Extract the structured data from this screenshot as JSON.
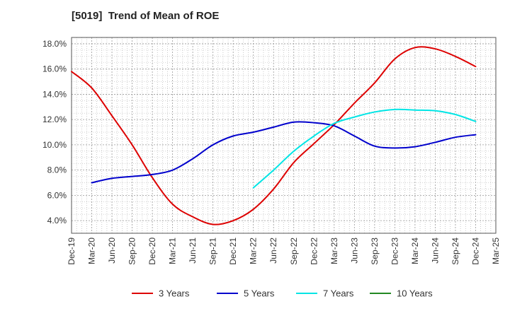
{
  "chart_data": {
    "type": "line",
    "title": "[5019]  Trend of Mean of ROE",
    "x": [
      "Dec-19",
      "Mar-20",
      "Jun-20",
      "Sep-20",
      "Dec-20",
      "Mar-21",
      "Jun-21",
      "Sep-21",
      "Dec-21",
      "Mar-22",
      "Jun-22",
      "Sep-22",
      "Dec-22",
      "Mar-23",
      "Jun-23",
      "Sep-23",
      "Dec-23",
      "Mar-24",
      "Jun-24",
      "Sep-24",
      "Dec-24",
      "Mar-25"
    ],
    "y_ticks": [
      "4.0%",
      "6.0%",
      "8.0%",
      "10.0%",
      "12.0%",
      "14.0%",
      "16.0%",
      "18.0%"
    ],
    "ylim": [
      3.0,
      18.5
    ],
    "grid": true,
    "legend_position": "bottom",
    "series": [
      {
        "name": "3 Years",
        "color": "#dd0000",
        "values": [
          15.8,
          14.5,
          12.3,
          10.0,
          7.4,
          5.3,
          4.3,
          3.7,
          4.0,
          4.9,
          6.5,
          8.6,
          10.1,
          11.6,
          13.3,
          14.9,
          16.8,
          17.7,
          17.6,
          17.0,
          16.2,
          null
        ]
      },
      {
        "name": "5 Years",
        "color": "#0000cc",
        "values": [
          null,
          7.0,
          7.35,
          7.5,
          7.65,
          8.0,
          8.9,
          10.0,
          10.7,
          11.0,
          11.4,
          11.8,
          11.75,
          11.5,
          10.7,
          9.9,
          9.75,
          9.85,
          10.2,
          10.6,
          10.8,
          null
        ]
      },
      {
        "name": "7 Years",
        "color": "#00e5e5",
        "values": [
          null,
          null,
          null,
          null,
          null,
          null,
          null,
          null,
          null,
          6.6,
          8.0,
          9.5,
          10.7,
          11.7,
          12.2,
          12.6,
          12.8,
          12.75,
          12.7,
          12.4,
          11.85,
          null
        ]
      },
      {
        "name": "10 Years",
        "color": "#228822",
        "values": [
          null,
          null,
          null,
          null,
          null,
          null,
          null,
          null,
          null,
          null,
          null,
          null,
          null,
          null,
          null,
          null,
          null,
          null,
          null,
          null,
          null,
          null
        ]
      }
    ]
  }
}
